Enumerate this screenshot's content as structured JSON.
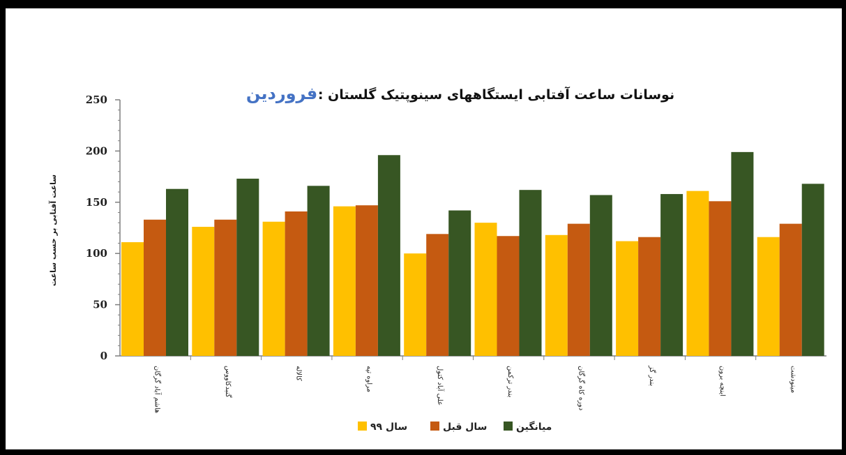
{
  "chart_data": {
    "type": "bar",
    "title": "نوسانات ساعت آفتابی ایستگاههای سینوپتیک گلستان :",
    "title_highlight": "فروردین",
    "ylabel": "ساعت آفتابی بر حسب ساعت",
    "xlabel": "",
    "ylim": [
      0,
      250
    ],
    "yticks": [
      0,
      50,
      100,
      150,
      200,
      250
    ],
    "grid": false,
    "legend_position": "bottom",
    "categories": [
      "هاشم آباد گرگان",
      "گنبدکاووس",
      "کالاله",
      "مراوه تپه",
      "علی آباد کتول",
      "بندر ترکمن",
      "دوره کاه گرگان",
      "بندر گز",
      "اینچه برون",
      "مینودشت"
    ],
    "series": [
      {
        "name": "سال ۹۹",
        "color": "#FFC000",
        "values": [
          111,
          126,
          131,
          146,
          100,
          130,
          118,
          112,
          161,
          116
        ]
      },
      {
        "name": "سال قبل",
        "color": "#C55A11",
        "values": [
          133,
          133,
          141,
          147,
          119,
          117,
          129,
          116,
          151,
          129
        ]
      },
      {
        "name": "میانگین",
        "color": "#375623",
        "values": [
          163,
          173,
          166,
          196,
          142,
          162,
          157,
          158,
          199,
          168
        ]
      }
    ]
  }
}
